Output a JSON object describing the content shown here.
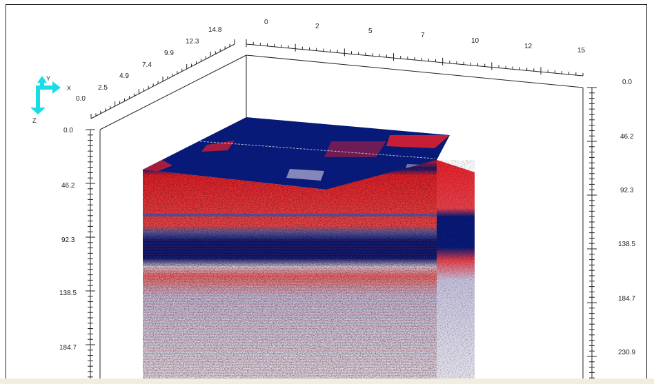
{
  "axes": {
    "top": {
      "ticks": [
        "0",
        "2",
        "5",
        "7",
        "10",
        "12",
        "15"
      ]
    },
    "top_left": {
      "ticks": [
        "0.0",
        "2.5",
        "4.9",
        "7.4",
        "9.9",
        "12.3",
        "14.8"
      ]
    },
    "left": {
      "ticks": [
        "0.0",
        "46.2",
        "92.3",
        "138.5",
        "184.7"
      ]
    },
    "right": {
      "ticks": [
        "0.0",
        "46.2",
        "92.3",
        "138.5",
        "184.7",
        "230.9"
      ]
    }
  },
  "orientation": {
    "x_label": "X",
    "y_label": "Y",
    "z_label": "Z",
    "color": "#19dde6"
  },
  "colors": {
    "red": "#e8202a",
    "navy": "#081a78",
    "frame": "#222222"
  }
}
